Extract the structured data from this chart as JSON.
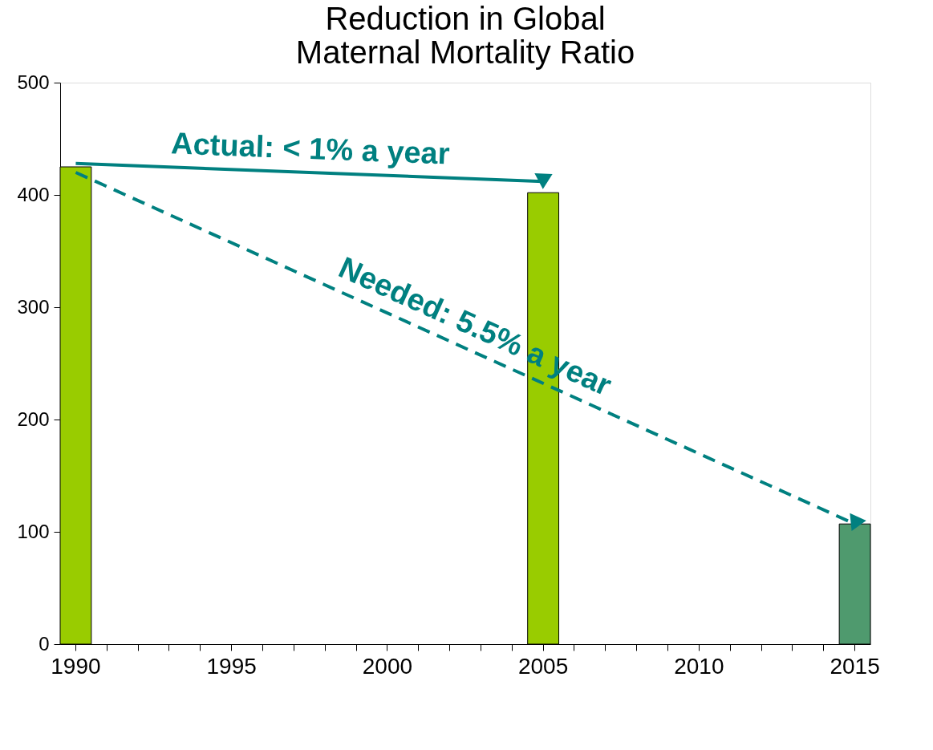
{
  "chart_data": {
    "type": "bar",
    "title": "Reduction in Global\nMaternal Mortality Ratio",
    "categories": [
      "1990",
      null,
      null,
      null,
      null,
      "1995",
      null,
      null,
      null,
      null,
      "2000",
      null,
      null,
      null,
      null,
      "2005",
      null,
      null,
      null,
      null,
      "2010",
      null,
      null,
      null,
      null,
      "2015"
    ],
    "series": [
      {
        "values": [
          425,
          null,
          null,
          null,
          null,
          null,
          null,
          null,
          null,
          null,
          null,
          null,
          null,
          null,
          null,
          402,
          null,
          null,
          null,
          null,
          null,
          null,
          null,
          null,
          null,
          107
        ],
        "colors": [
          "#99cc00",
          null,
          null,
          null,
          null,
          null,
          null,
          null,
          null,
          null,
          null,
          null,
          null,
          null,
          null,
          "#99cc00",
          null,
          null,
          null,
          null,
          null,
          null,
          null,
          null,
          null,
          "#4f9a6e"
        ]
      },
      {
        "type": "line",
        "name": "Actual: < 1% a year",
        "values": [
          428,
          null,
          null,
          null,
          null,
          null,
          null,
          null,
          null,
          null,
          null,
          null,
          null,
          null,
          null,
          412,
          null,
          null,
          null,
          null,
          null,
          null,
          null,
          null,
          null,
          null
        ],
        "color": "#008080",
        "line_style": "solid"
      },
      {
        "type": "line",
        "name": "Needed: 5.5% a year",
        "values": [
          420,
          null,
          null,
          null,
          null,
          null,
          null,
          null,
          null,
          null,
          null,
          null,
          null,
          null,
          null,
          null,
          null,
          null,
          null,
          null,
          null,
          null,
          null,
          null,
          null,
          107
        ],
        "color": "#008080",
        "line_style": "dashed"
      }
    ],
    "ylim": [
      0,
      500
    ],
    "yticks": [
      0,
      100,
      200,
      300,
      400,
      500
    ],
    "grid": false
  }
}
